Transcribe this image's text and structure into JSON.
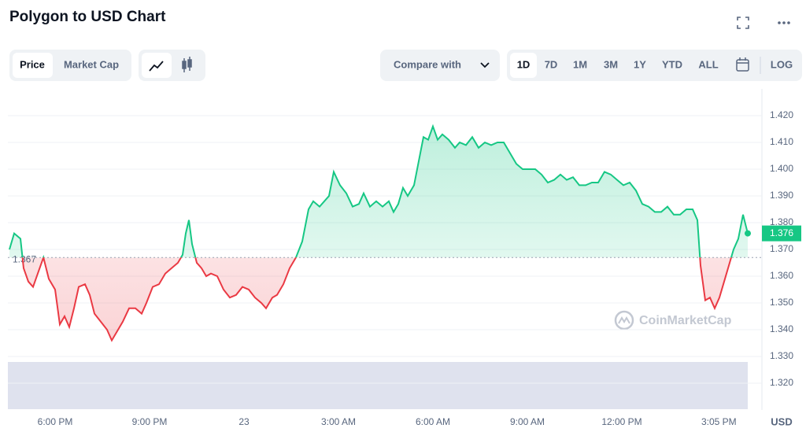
{
  "ui": {
    "title": "Polygon to USD Chart",
    "tabs": [
      "Price",
      "Market Cap"
    ],
    "compare": "Compare with",
    "ranges": [
      "1D",
      "7D",
      "1M",
      "3M",
      "1Y",
      "YTD",
      "ALL"
    ],
    "log": "LOG",
    "watermark": "CoinMarketCap"
  },
  "chart_data": {
    "type": "line",
    "name": "Polygon to USD",
    "x": [
      16.55,
      16.7,
      16.9,
      17.0,
      17.15,
      17.3,
      17.45,
      17.63,
      17.8,
      18.0,
      18.15,
      18.3,
      18.45,
      18.6,
      18.75,
      18.95,
      19.1,
      19.25,
      19.45,
      19.65,
      19.8,
      20.0,
      20.15,
      20.35,
      20.55,
      20.75,
      20.9,
      21.1,
      21.3,
      21.5,
      21.7,
      21.9,
      22.05,
      22.15,
      22.25,
      22.35,
      22.5,
      22.65,
      22.8,
      22.95,
      23.15,
      23.35,
      23.55,
      23.75,
      23.95,
      24.15,
      24.35,
      24.55,
      24.7,
      24.9,
      25.05,
      25.25,
      25.45,
      25.65,
      25.85,
      26.05,
      26.2,
      26.4,
      26.55,
      26.7,
      26.85,
      27.05,
      27.25,
      27.45,
      27.65,
      27.8,
      28.0,
      28.2,
      28.4,
      28.6,
      28.75,
      28.9,
      29.05,
      29.2,
      29.4,
      29.55,
      29.7,
      29.85,
      30.0,
      30.15,
      30.3,
      30.5,
      30.7,
      30.85,
      31.05,
      31.25,
      31.45,
      31.65,
      31.85,
      32.05,
      32.25,
      32.45,
      32.65,
      32.85,
      33.05,
      33.25,
      33.45,
      33.65,
      33.85,
      34.05,
      34.25,
      34.45,
      34.65,
      34.85,
      35.05,
      35.25,
      35.45,
      35.65,
      35.85,
      36.05,
      36.25,
      36.45,
      36.65,
      36.85,
      37.05,
      37.25,
      37.45,
      37.65,
      37.85,
      38.05,
      38.25,
      38.4,
      38.5,
      38.65,
      38.8,
      38.95,
      39.1,
      39.25,
      39.4,
      39.55,
      39.7,
      39.85,
      40.0
    ],
    "values": [
      1.37,
      1.376,
      1.374,
      1.363,
      1.358,
      1.356,
      1.361,
      1.367,
      1.359,
      1.355,
      1.342,
      1.345,
      1.341,
      1.348,
      1.356,
      1.357,
      1.353,
      1.346,
      1.343,
      1.34,
      1.336,
      1.34,
      1.343,
      1.348,
      1.348,
      1.346,
      1.35,
      1.356,
      1.357,
      1.361,
      1.363,
      1.365,
      1.368,
      1.376,
      1.381,
      1.372,
      1.365,
      1.363,
      1.36,
      1.361,
      1.36,
      1.355,
      1.352,
      1.353,
      1.356,
      1.355,
      1.352,
      1.35,
      1.348,
      1.352,
      1.353,
      1.357,
      1.363,
      1.367,
      1.373,
      1.385,
      1.388,
      1.386,
      1.388,
      1.39,
      1.399,
      1.394,
      1.391,
      1.386,
      1.387,
      1.391,
      1.386,
      1.388,
      1.386,
      1.388,
      1.384,
      1.387,
      1.393,
      1.39,
      1.394,
      1.403,
      1.412,
      1.411,
      1.416,
      1.411,
      1.413,
      1.411,
      1.408,
      1.41,
      1.409,
      1.412,
      1.408,
      1.41,
      1.409,
      1.41,
      1.41,
      1.406,
      1.402,
      1.4,
      1.4,
      1.4,
      1.398,
      1.395,
      1.396,
      1.398,
      1.396,
      1.397,
      1.394,
      1.394,
      1.395,
      1.395,
      1.399,
      1.398,
      1.396,
      1.394,
      1.395,
      1.392,
      1.387,
      1.386,
      1.384,
      1.384,
      1.386,
      1.383,
      1.383,
      1.385,
      1.385,
      1.381,
      1.364,
      1.351,
      1.352,
      1.348,
      1.352,
      1.358,
      1.364,
      1.37,
      1.374,
      1.383,
      1.376
    ],
    "up_color": "#16c784",
    "down_color": "#ea3943",
    "reference": {
      "value": 1.367,
      "label": "1.367"
    },
    "current_label": "1.376",
    "xlim": [
      16.5,
      40.45
    ],
    "xticks": [
      {
        "value": 18,
        "label": "6:00 PM"
      },
      {
        "value": 21,
        "label": "9:00 PM"
      },
      {
        "value": 24,
        "label": "23"
      },
      {
        "value": 27,
        "label": "3:00 AM"
      },
      {
        "value": 30,
        "label": "6:00 AM"
      },
      {
        "value": 33,
        "label": "9:00 AM"
      },
      {
        "value": 36,
        "label": "12:00 PM"
      },
      {
        "value": 39.083,
        "label": "3:05 PM"
      }
    ],
    "ylim": [
      1.31,
      1.43
    ],
    "yticks": [
      {
        "value": 1.32,
        "label": "1.320"
      },
      {
        "value": 1.33,
        "label": "1.330"
      },
      {
        "value": 1.34,
        "label": "1.340"
      },
      {
        "value": 1.35,
        "label": "1.350"
      },
      {
        "value": 1.36,
        "label": "1.360"
      },
      {
        "value": 1.37,
        "label": "1.370"
      },
      {
        "value": 1.38,
        "label": "1.380"
      },
      {
        "value": 1.39,
        "label": "1.390"
      },
      {
        "value": 1.4,
        "label": "1.400"
      },
      {
        "value": 1.41,
        "label": "1.410"
      },
      {
        "value": 1.42,
        "label": "1.420"
      }
    ],
    "y_unit": "USD",
    "grid": true
  }
}
